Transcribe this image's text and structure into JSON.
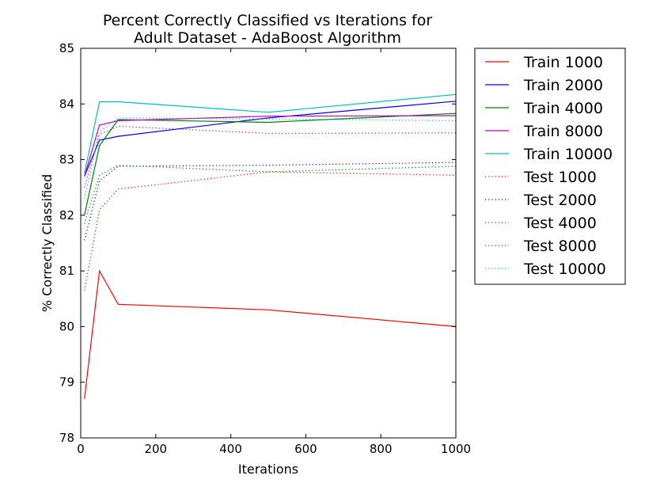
{
  "chart_data": {
    "type": "line",
    "title_line1": "Percent Correctly Classified vs Iterations for",
    "title_line2": "Adult Dataset - AdaBoost Algorithm",
    "xlabel": "Iterations",
    "ylabel": "% Correctly Classified",
    "xlim": [
      0,
      1000
    ],
    "ylim": [
      78,
      85
    ],
    "xticks": [
      0,
      200,
      400,
      600,
      800,
      1000
    ],
    "yticks": [
      78,
      79,
      80,
      81,
      82,
      83,
      84,
      85
    ],
    "grid": false,
    "legend_position": "outside-right",
    "x": [
      10,
      50,
      100,
      500,
      1000
    ],
    "series": [
      {
        "name": "Train 1000",
        "color": "#ff0000",
        "style": "solid",
        "values": [
          78.7,
          81.0,
          80.4,
          80.3,
          80.0
        ]
      },
      {
        "name": "Train 2000",
        "color": "#0000ff",
        "style": "solid",
        "values": [
          82.7,
          83.35,
          83.42,
          83.75,
          84.05
        ]
      },
      {
        "name": "Train 4000",
        "color": "#008000",
        "style": "solid",
        "values": [
          82.0,
          83.25,
          83.72,
          83.67,
          83.83
        ]
      },
      {
        "name": "Train 8000",
        "color": "#bf00bf",
        "style": "solid",
        "values": [
          82.7,
          83.62,
          83.7,
          83.78,
          83.79
        ]
      },
      {
        "name": "Train 10000",
        "color": "#00bfbf",
        "style": "solid",
        "values": [
          82.75,
          84.04,
          84.04,
          83.85,
          84.17
        ]
      },
      {
        "name": "Test 1000",
        "color": "#ff0000",
        "style": "dotted",
        "values": [
          80.65,
          82.1,
          82.47,
          82.78,
          82.72
        ]
      },
      {
        "name": "Test 2000",
        "color": "#0000ff",
        "style": "dotted",
        "values": [
          81.55,
          82.62,
          82.88,
          82.9,
          82.95
        ]
      },
      {
        "name": "Test 4000",
        "color": "#008000",
        "style": "dotted",
        "values": [
          81.85,
          82.72,
          82.9,
          82.78,
          82.88
        ]
      },
      {
        "name": "Test 8000",
        "color": "#bf00bf",
        "style": "dotted",
        "values": [
          82.5,
          83.45,
          83.6,
          83.47,
          83.48
        ]
      },
      {
        "name": "Test 10000",
        "color": "#00bfbf",
        "style": "dotted",
        "values": [
          82.3,
          83.5,
          83.75,
          83.73,
          83.7
        ]
      }
    ]
  }
}
